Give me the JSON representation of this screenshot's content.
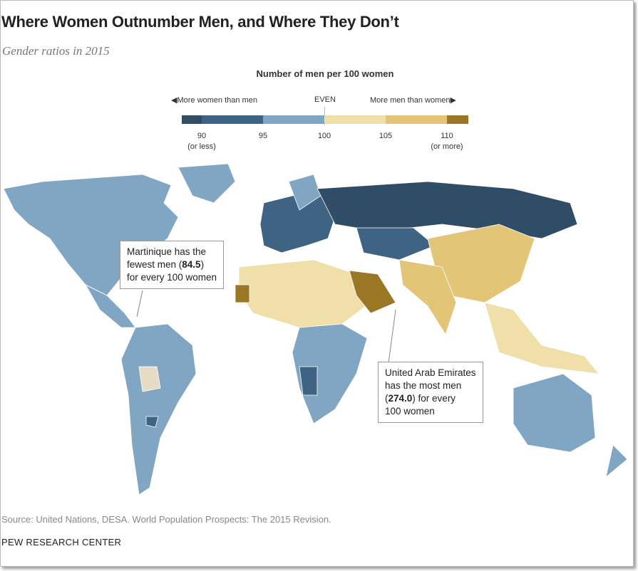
{
  "title": "Where Women Outnumber Men, and Where They Don’t",
  "subtitle": "Gender ratios in 2015",
  "legend": {
    "title": "Number of men per 100 women",
    "left_label": "More women than men",
    "center_label": "EVEN",
    "right_label": "More men than women",
    "ticks": [
      {
        "value": "90",
        "note": "(or less)"
      },
      {
        "value": "95",
        "note": ""
      },
      {
        "value": "100",
        "note": ""
      },
      {
        "value": "105",
        "note": ""
      },
      {
        "value": "110",
        "note": "(or more)"
      }
    ],
    "colors": {
      "lt90": "#2f4d66",
      "90_95": "#3f6383",
      "95_100": "#80a6c3",
      "100_105": "#f0dfa8",
      "105_110": "#e3c577",
      "gt110": "#9b7625"
    }
  },
  "callouts": {
    "martinique": {
      "line1": "Martinique has the",
      "line2a": "fewest men (",
      "value": "84.5",
      "line2b": ")",
      "line3": "for every 100 women"
    },
    "uae": {
      "line1": "United Arab Emirates",
      "line2": "has the most men",
      "value": "274.0",
      "line3b": ") for every",
      "line4": "100 women"
    }
  },
  "source": "Source: United Nations, DESA. World Population Prospects: The 2015 Revision.",
  "brand": "PEW RESEARCH CENTER"
}
